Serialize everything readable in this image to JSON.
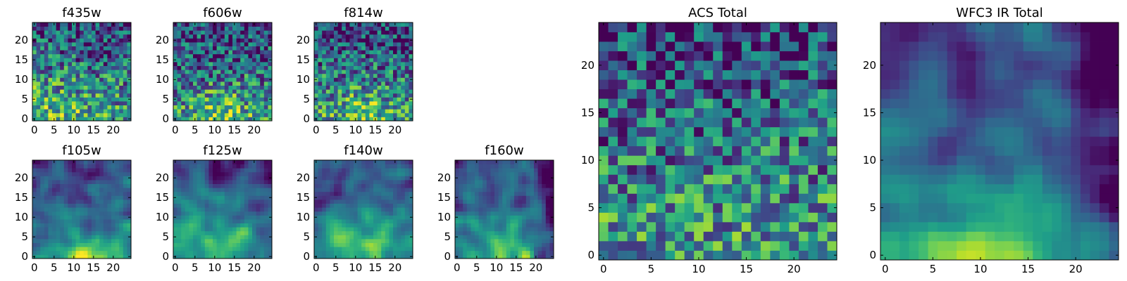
{
  "chart_data": [
    {
      "type": "heatmap",
      "title": "f435w",
      "grid_size": 25,
      "colormap": "viridis",
      "seed": 11,
      "trend": "bright-lower-left-noisy",
      "xlim": [
        -0.5,
        24.5
      ],
      "ylim": [
        -0.5,
        24.5
      ],
      "xticks": [
        "0",
        "5",
        "10",
        "15",
        "20"
      ],
      "yticks": [
        "0",
        "5",
        "10",
        "15",
        "20"
      ]
    },
    {
      "type": "heatmap",
      "title": "f606w",
      "grid_size": 25,
      "colormap": "viridis",
      "seed": 23,
      "trend": "bright-bottom-center",
      "xlim": [
        -0.5,
        24.5
      ],
      "ylim": [
        -0.5,
        24.5
      ],
      "xticks": [
        "0",
        "5",
        "10",
        "15",
        "20"
      ],
      "yticks": [
        "0",
        "5",
        "10",
        "15",
        "20"
      ]
    },
    {
      "type": "heatmap",
      "title": "f814w",
      "grid_size": 25,
      "colormap": "viridis",
      "seed": 37,
      "trend": "bright-bottom-center",
      "xlim": [
        -0.5,
        24.5
      ],
      "ylim": [
        -0.5,
        24.5
      ],
      "xticks": [
        "0",
        "5",
        "10",
        "15",
        "20"
      ],
      "yticks": [
        "0",
        "5",
        "10",
        "15",
        "20"
      ]
    },
    {
      "type": "heatmap",
      "title": "f105w",
      "grid_size": 25,
      "colormap": "viridis",
      "seed": 41,
      "trend": "bright-bottom-center-smooth",
      "xlim": [
        -0.5,
        24.5
      ],
      "ylim": [
        -0.5,
        24.5
      ],
      "xticks": [
        "0",
        "5",
        "10",
        "15",
        "20"
      ],
      "yticks": [
        "0",
        "5",
        "10",
        "15",
        "20"
      ]
    },
    {
      "type": "heatmap",
      "title": "f125w",
      "grid_size": 25,
      "colormap": "viridis",
      "seed": 53,
      "trend": "bright-bottom-center-smooth",
      "xlim": [
        -0.5,
        24.5
      ],
      "ylim": [
        -0.5,
        24.5
      ],
      "xticks": [
        "0",
        "5",
        "10",
        "15",
        "20"
      ],
      "yticks": [
        "0",
        "5",
        "10",
        "15",
        "20"
      ]
    },
    {
      "type": "heatmap",
      "title": "f140w",
      "grid_size": 25,
      "colormap": "viridis",
      "seed": 67,
      "trend": "bright-bottom-center-smooth",
      "xlim": [
        -0.5,
        24.5
      ],
      "ylim": [
        -0.5,
        24.5
      ],
      "xticks": [
        "0",
        "5",
        "10",
        "15",
        "20"
      ],
      "yticks": [
        "0",
        "5",
        "10",
        "15",
        "20"
      ]
    },
    {
      "type": "heatmap",
      "title": "f160w",
      "grid_size": 25,
      "colormap": "viridis",
      "seed": 79,
      "trend": "bright-bottom-center-dark-right",
      "xlim": [
        -0.5,
        24.5
      ],
      "ylim": [
        -0.5,
        24.5
      ],
      "xticks": [
        "0",
        "5",
        "10",
        "15",
        "20"
      ],
      "yticks": [
        "0",
        "5",
        "10",
        "15",
        "20"
      ]
    },
    {
      "type": "heatmap",
      "title": "ACS Total",
      "grid_size": 25,
      "colormap": "viridis",
      "seed": 97,
      "trend": "bright-bottom-noisy",
      "xlim": [
        -0.5,
        24.5
      ],
      "ylim": [
        -0.5,
        24.5
      ],
      "xticks": [
        "0",
        "5",
        "10",
        "15",
        "20"
      ],
      "yticks": [
        "0",
        "5",
        "10",
        "15",
        "20"
      ]
    },
    {
      "type": "heatmap",
      "title": "WFC3 IR Total",
      "grid_size": 25,
      "colormap": "viridis",
      "seed": 103,
      "trend": "bright-bottom-center-dark-right",
      "xlim": [
        -0.5,
        24.5
      ],
      "ylim": [
        -0.5,
        24.5
      ],
      "xticks": [
        "0",
        "5",
        "10",
        "15",
        "20"
      ],
      "yticks": [
        "0",
        "5",
        "10",
        "15",
        "20"
      ]
    }
  ]
}
